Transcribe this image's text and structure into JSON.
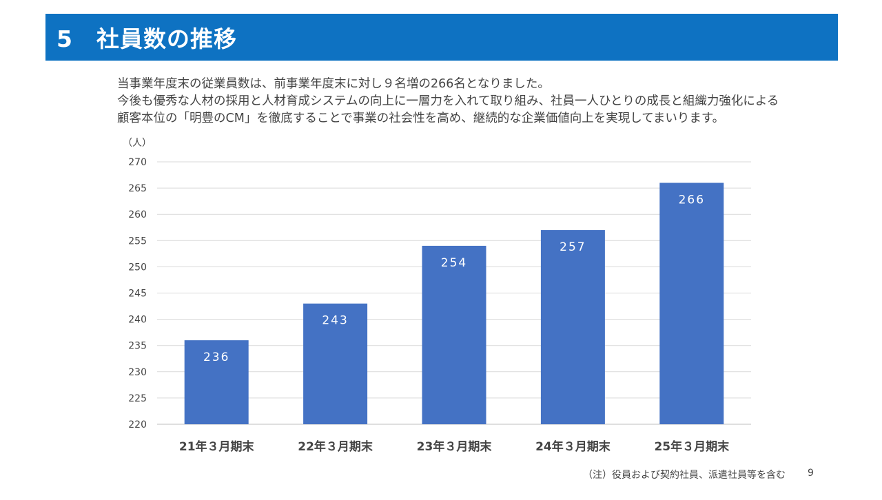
{
  "slide": {
    "title": "5　社員数の推移",
    "page_number": "9",
    "footnote": "（注）役員および契約社員、派遣社員等を含む"
  },
  "intro": {
    "lines": [
      "当事業年度末の従業員数は、前事業年度末に対し９名増の266名となりました。",
      "今後も優秀な人材の採用と人材育成システムの向上に一層力を入れて取り組み、社員一人ひとりの成長と組織力強化による",
      "顧客本位の「明豊のCM」を徹底することで事業の社会性を高め、継続的な企業価値向上を実現してまいります。"
    ]
  },
  "colors": {
    "title_bar": "#0e72c2",
    "bar": "#4472c4",
    "grid": "#d9d9d9",
    "text": "#444444"
  },
  "chart_data": {
    "type": "bar",
    "categories": [
      "21年３月期末",
      "22年３月期末",
      "23年３月期末",
      "24年３月期末",
      "25年３月期末"
    ],
    "values": [
      236,
      243,
      254,
      257,
      266
    ],
    "data_labels": [
      "236",
      "243",
      "254",
      "257",
      "266"
    ],
    "ylabel": "（人）",
    "ylim": [
      220,
      270
    ],
    "yticks": [
      220,
      225,
      230,
      235,
      240,
      245,
      250,
      255,
      260,
      265,
      270
    ],
    "grid": true,
    "legend": "none"
  }
}
